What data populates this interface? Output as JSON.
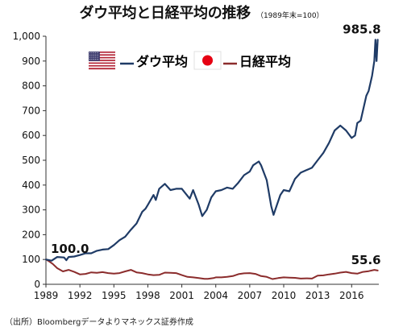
{
  "header": {
    "title": "ダウ平均と日経平均の推移",
    "title_note": "（1989年末=100）"
  },
  "footer": {
    "source": "（出所）Bloombergデータよりマネックス証券作成"
  },
  "colors": {
    "dow": "#1f3b66",
    "nikkei": "#8b2c2c",
    "axis": "#333333",
    "usa_flag_red": "#b22234",
    "usa_flag_blue": "#3c3b6e",
    "japan_red": "#e60012"
  },
  "legend": {
    "dow_label": "ダウ平均",
    "nikkei_label": "日経平均",
    "dow_icon": "usa-flag-icon",
    "nikkei_icon": "japan-flag-icon",
    "placement": "top-left"
  },
  "chart_data": {
    "type": "line",
    "title": "ダウ平均と日経平均の推移",
    "subtitle": "（1989年末=100）",
    "xlabel": "",
    "ylabel": "",
    "xlim": [
      1989.0,
      2018.4
    ],
    "ylim": [
      0,
      1000
    ],
    "grid": false,
    "legend": "top-left",
    "x_ticks": [
      1989,
      1992,
      1995,
      1998,
      2001,
      2004,
      2007,
      2010,
      2013,
      2016
    ],
    "x_tick_labels": [
      "1989",
      "1992",
      "1995",
      "1998",
      "2001",
      "2004",
      "2007",
      "2010",
      "2013",
      "2016"
    ],
    "y_ticks": [
      0,
      100,
      200,
      300,
      400,
      500,
      600,
      700,
      800,
      900,
      1000
    ],
    "y_tick_labels": [
      "0",
      "100",
      "200",
      "300",
      "400",
      "500",
      "600",
      "700",
      "800",
      "900",
      "1,000"
    ],
    "annotations": [
      {
        "text": "100.0",
        "series": "dow",
        "x": 1989.0,
        "y": 100.0
      },
      {
        "text": "985.8",
        "series": "dow",
        "x": 2018.3,
        "y": 985.8
      },
      {
        "text": "55.6",
        "series": "nikkei",
        "x": 2018.3,
        "y": 55.6
      }
    ],
    "series": [
      {
        "key": "dow",
        "name": "ダウ平均",
        "color": "#1f3b66",
        "x": [
          1989.0,
          1989.5,
          1990.0,
          1990.6,
          1990.8,
          1991.0,
          1991.5,
          1992.0,
          1992.5,
          1993.0,
          1993.5,
          1994.0,
          1994.5,
          1995.0,
          1995.5,
          1996.0,
          1996.5,
          1997.0,
          1997.5,
          1997.8,
          1998.0,
          1998.5,
          1998.7,
          1999.0,
          1999.5,
          2000.0,
          2000.5,
          2001.0,
          2001.7,
          2002.0,
          2002.5,
          2002.8,
          2003.2,
          2003.6,
          2004.0,
          2004.5,
          2005.0,
          2005.5,
          2006.0,
          2006.5,
          2007.0,
          2007.3,
          2007.8,
          2008.0,
          2008.5,
          2008.9,
          2009.1,
          2009.4,
          2009.7,
          2010.0,
          2010.5,
          2011.0,
          2011.5,
          2012.0,
          2012.5,
          2013.0,
          2013.5,
          2014.0,
          2014.5,
          2015.0,
          2015.5,
          2016.0,
          2016.3,
          2016.5,
          2016.8,
          2017.0,
          2017.3,
          2017.5,
          2017.8,
          2018.0,
          2018.1,
          2018.2,
          2018.3
        ],
        "y": [
          100.0,
          95,
          110,
          108,
          97,
          110,
          112,
          118,
          125,
          125,
          135,
          140,
          142,
          158,
          178,
          192,
          220,
          245,
          292,
          305,
          320,
          360,
          340,
          385,
          405,
          380,
          385,
          385,
          345,
          380,
          320,
          275,
          300,
          350,
          375,
          380,
          390,
          385,
          410,
          440,
          455,
          480,
          495,
          480,
          420,
          315,
          280,
          320,
          360,
          380,
          375,
          425,
          450,
          460,
          470,
          500,
          530,
          570,
          620,
          640,
          620,
          590,
          600,
          650,
          660,
          700,
          760,
          780,
          840,
          900,
          985.8,
          900,
          985.8
        ]
      },
      {
        "key": "nikkei",
        "name": "日経平均",
        "color": "#8b2c2c",
        "x": [
          1989.0,
          1989.3,
          1989.6,
          1990.0,
          1990.5,
          1991.0,
          1991.5,
          1992.0,
          1992.5,
          1993.0,
          1993.5,
          1994.0,
          1994.5,
          1995.0,
          1995.5,
          1996.0,
          1996.5,
          1997.0,
          1997.5,
          1998.0,
          1998.5,
          1999.0,
          1999.5,
          2000.0,
          2000.5,
          2001.0,
          2001.5,
          2002.0,
          2002.5,
          2003.0,
          2003.3,
          2003.8,
          2004.0,
          2004.5,
          2005.0,
          2005.5,
          2006.0,
          2006.5,
          2007.0,
          2007.5,
          2008.0,
          2008.5,
          2009.0,
          2009.5,
          2010.0,
          2010.5,
          2011.0,
          2011.5,
          2012.0,
          2012.5,
          2013.0,
          2013.5,
          2014.0,
          2014.5,
          2015.0,
          2015.5,
          2016.0,
          2016.5,
          2017.0,
          2017.5,
          2018.0,
          2018.3
        ],
        "y": [
          100.0,
          92,
          82,
          65,
          52,
          58,
          50,
          40,
          42,
          48,
          46,
          49,
          45,
          43,
          45,
          52,
          58,
          48,
          45,
          40,
          37,
          38,
          47,
          46,
          45,
          37,
          30,
          28,
          25,
          22,
          22,
          25,
          28,
          28,
          30,
          33,
          41,
          44,
          45,
          42,
          33,
          30,
          21,
          25,
          28,
          27,
          26,
          23,
          24,
          23,
          35,
          36,
          40,
          43,
          47,
          50,
          45,
          43,
          50,
          53,
          58,
          55.6
        ]
      }
    ]
  }
}
